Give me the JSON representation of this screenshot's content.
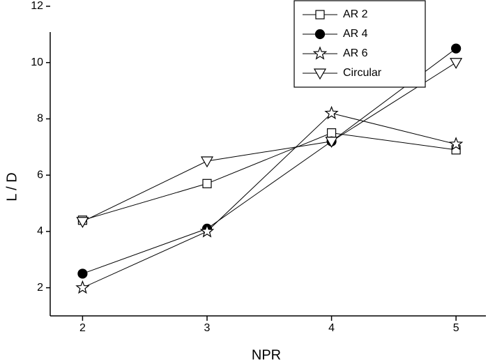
{
  "chart_data": {
    "type": "line",
    "x_label": "NPR",
    "y_label": "L / D",
    "x": [
      2,
      3,
      4,
      5
    ],
    "series": [
      {
        "name": "AR 2",
        "color": "#000000",
        "marker": "square",
        "values": [
          4.4,
          5.7,
          7.5,
          6.9
        ]
      },
      {
        "name": "AR 4",
        "color": "#000000",
        "marker": "circle",
        "values": [
          2.5,
          4.1,
          7.2,
          10.5
        ]
      },
      {
        "name": "AR 6",
        "color": "#000000",
        "marker": "star",
        "values": [
          2.0,
          4.0,
          8.2,
          7.1
        ]
      },
      {
        "name": "Circular",
        "color": "#000000",
        "marker": "triangle-down",
        "values": [
          4.35,
          6.5,
          7.2,
          10.0
        ]
      }
    ],
    "xlim": [
      1.74,
      5.24
    ],
    "ylim": [
      1,
      12
    ],
    "xticks": [
      2,
      3,
      4,
      5
    ],
    "yticks": [
      2,
      4,
      6,
      8,
      10,
      12
    ],
    "grid": false,
    "legend": "top-right"
  }
}
